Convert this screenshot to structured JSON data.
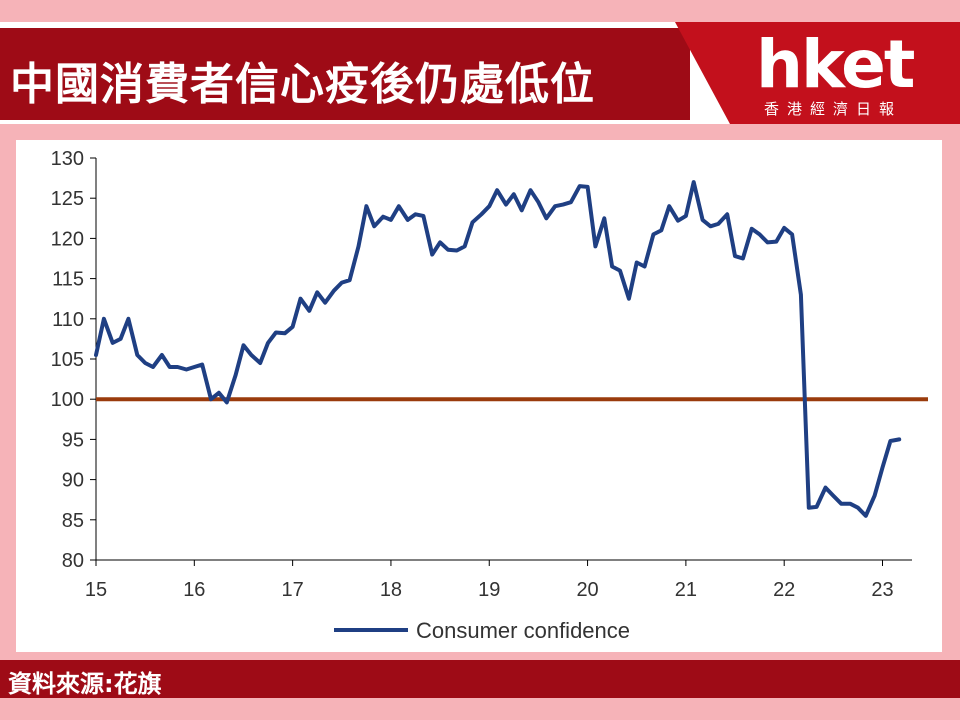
{
  "header": {
    "title": "中國消費者信心疫後仍處低位",
    "logo_main": "hket",
    "logo_sub": "香港經濟日報"
  },
  "footer": {
    "source": "資料來源:花旗"
  },
  "colors": {
    "title_bar": "#9e0b16",
    "logo_wedge": "#c3101c",
    "page_background": "#f6b3b8",
    "series_line": "#1f3f83",
    "reference_line": "#9a3b0c",
    "axis": "#000000"
  },
  "chart_data": {
    "type": "line",
    "title": "",
    "xlabel": "",
    "ylabel": "",
    "ylim": [
      80,
      130
    ],
    "xlim": [
      15,
      23.3
    ],
    "yticks": [
      "80",
      "85",
      "90",
      "95",
      "100",
      "105",
      "110",
      "115",
      "120",
      "125",
      "130"
    ],
    "xticks": [
      "15",
      "16",
      "17",
      "18",
      "19",
      "20",
      "21",
      "22",
      "23"
    ],
    "grid": false,
    "legend": "bottom-center",
    "reference_line": {
      "y": 100
    },
    "series": [
      {
        "name": "Consumer confidence",
        "x": [
          15.0,
          15.08,
          15.17,
          15.25,
          15.33,
          15.42,
          15.5,
          15.58,
          15.67,
          15.75,
          15.83,
          15.92,
          16.0,
          16.08,
          16.17,
          16.25,
          16.33,
          16.42,
          16.5,
          16.58,
          16.67,
          16.75,
          16.83,
          16.92,
          17.0,
          17.08,
          17.17,
          17.25,
          17.33,
          17.42,
          17.5,
          17.58,
          17.67,
          17.75,
          17.83,
          17.92,
          18.0,
          18.08,
          18.17,
          18.25,
          18.33,
          18.42,
          18.5,
          18.58,
          18.67,
          18.75,
          18.83,
          18.92,
          19.0,
          19.08,
          19.17,
          19.25,
          19.33,
          19.42,
          19.5,
          19.58,
          19.67,
          19.75,
          19.83,
          19.92,
          20.0,
          20.08,
          20.17,
          20.25,
          20.33,
          20.42,
          20.5,
          20.58,
          20.67,
          20.75,
          20.83,
          20.92,
          21.0,
          21.08,
          21.17,
          21.25,
          21.33,
          21.42,
          21.5,
          21.58,
          21.67,
          21.75,
          21.83,
          21.92,
          22.0,
          22.08,
          22.17,
          22.25,
          22.33,
          22.42,
          22.5,
          22.58,
          22.67,
          22.75,
          22.83,
          22.92,
          23.0,
          23.08,
          23.17
        ],
        "values": [
          105.5,
          110.0,
          107.0,
          107.5,
          110.0,
          105.5,
          104.5,
          104.0,
          105.5,
          104.0,
          104.0,
          103.7,
          104.0,
          104.3,
          100.0,
          100.8,
          99.6,
          103.0,
          106.7,
          105.5,
          104.5,
          107.0,
          108.3,
          108.2,
          109.0,
          112.5,
          111.0,
          113.3,
          112.0,
          113.5,
          114.5,
          114.8,
          119.0,
          124.0,
          121.5,
          122.7,
          122.3,
          124.0,
          122.3,
          123.0,
          122.8,
          118.0,
          119.5,
          118.6,
          118.5,
          119.0,
          122.0,
          123.0,
          124.0,
          126.0,
          124.2,
          125.5,
          123.5,
          126.0,
          124.5,
          122.5,
          124.0,
          124.2,
          124.5,
          126.5,
          126.4,
          119.0,
          122.5,
          116.5,
          116.0,
          112.5,
          117.0,
          116.5,
          120.5,
          121.0,
          124.0,
          122.2,
          122.8,
          127.0,
          122.3,
          121.5,
          121.8,
          123.0,
          117.8,
          117.5,
          121.2,
          120.5,
          119.5,
          119.6,
          121.3,
          120.5,
          113.0,
          86.5,
          86.6,
          89.0,
          88.0,
          87.0,
          87.0,
          86.5,
          85.5,
          88.0,
          91.5,
          94.8,
          95.0
        ]
      }
    ]
  }
}
